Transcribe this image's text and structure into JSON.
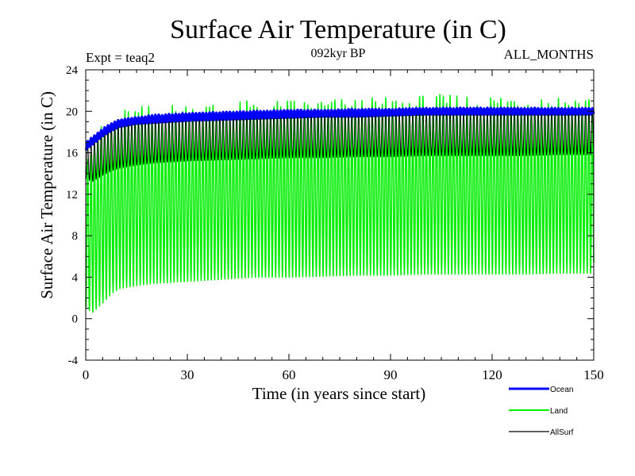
{
  "chart_data": {
    "type": "line",
    "title": "Surface Air Temperature (in C)",
    "subtitle": "092kyr BP",
    "left_label": "Expt = teaq2",
    "right_label": "ALL_MONTHS",
    "xlabel": "Time (in years since start)",
    "ylabel": "Surface Air Temperature (in C)",
    "xlim": [
      0,
      150
    ],
    "ylim": [
      -4,
      24
    ],
    "x_ticks": [
      0,
      30,
      60,
      90,
      120,
      150
    ],
    "y_ticks": [
      -4,
      0,
      4,
      8,
      12,
      16,
      20,
      24
    ],
    "legend_position": "bottom-right",
    "series": [
      {
        "name": "Ocean",
        "color": "#0000ff",
        "style": "thick line",
        "description": "smooth seasonal curve",
        "x": [
          0,
          2,
          5,
          8,
          10,
          15,
          20,
          30,
          40,
          50,
          60,
          70,
          80,
          90,
          100,
          110,
          120,
          130,
          140,
          150
        ],
        "lower": [
          16.3,
          16.8,
          17.6,
          18.2,
          18.5,
          18.8,
          18.9,
          19.1,
          19.2,
          19.3,
          19.4,
          19.5,
          19.5,
          19.6,
          19.7,
          19.7,
          19.7,
          19.7,
          19.7,
          19.7
        ],
        "upper": [
          17.0,
          17.5,
          18.3,
          18.9,
          19.2,
          19.4,
          19.6,
          19.8,
          19.9,
          20.0,
          20.1,
          20.1,
          20.2,
          20.2,
          20.3,
          20.3,
          20.3,
          20.3,
          20.3,
          20.3
        ]
      },
      {
        "name": "Land",
        "color": "#00ee00",
        "style": "line",
        "description": "large seasonal oscillation",
        "x": [
          0,
          2,
          5,
          8,
          10,
          15,
          20,
          30,
          40,
          50,
          60,
          70,
          80,
          90,
          100,
          110,
          120,
          130,
          140,
          150
        ],
        "lower": [
          1.0,
          0.6,
          1.5,
          2.5,
          2.9,
          3.2,
          3.4,
          3.6,
          3.8,
          4.0,
          4.0,
          4.1,
          4.2,
          4.2,
          4.3,
          4.3,
          4.3,
          4.3,
          4.4,
          4.4
        ],
        "upper": [
          16.0,
          16.8,
          17.8,
          18.6,
          19.2,
          19.5,
          19.7,
          19.9,
          20.0,
          20.1,
          20.2,
          20.3,
          20.3,
          20.4,
          20.6,
          20.7,
          20.7,
          20.8,
          20.7,
          20.6
        ]
      },
      {
        "name": "AllSurf",
        "color": "#000000",
        "style": "thin line",
        "description": "combined surface, moderate oscillation",
        "x": [
          0,
          2,
          5,
          8,
          10,
          15,
          20,
          30,
          40,
          50,
          60,
          70,
          80,
          90,
          100,
          110,
          120,
          130,
          140,
          150
        ],
        "lower": [
          13.5,
          13.2,
          13.8,
          14.3,
          14.5,
          14.8,
          15.0,
          15.2,
          15.3,
          15.4,
          15.5,
          15.5,
          15.6,
          15.6,
          15.7,
          15.7,
          15.7,
          15.7,
          15.8,
          15.8
        ],
        "upper": [
          16.7,
          17.2,
          18.0,
          18.6,
          18.9,
          19.2,
          19.4,
          19.6,
          19.7,
          19.8,
          19.9,
          19.9,
          20.0,
          20.0,
          20.1,
          20.1,
          20.1,
          20.2,
          20.1,
          20.1
        ]
      }
    ]
  }
}
